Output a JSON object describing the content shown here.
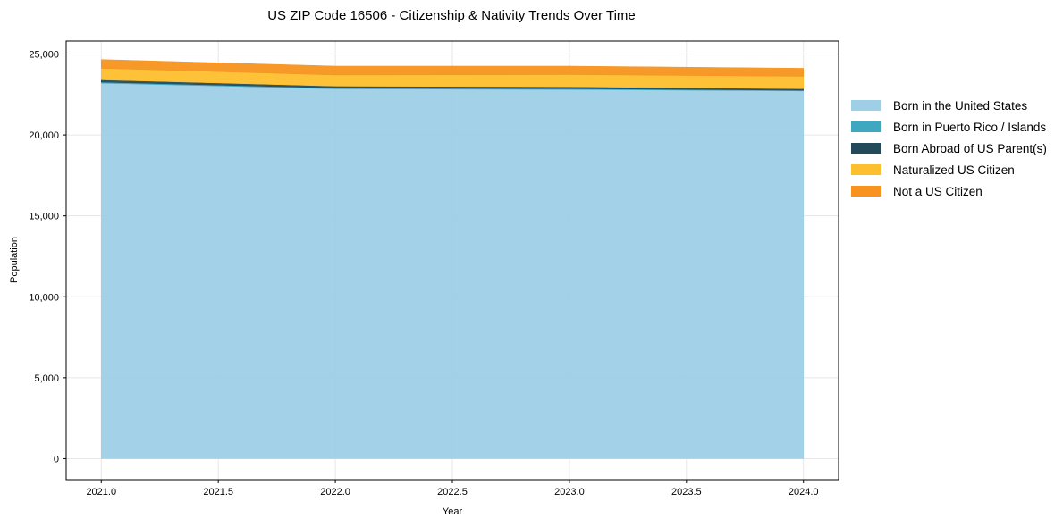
{
  "chart_data": {
    "type": "area",
    "stacked": true,
    "title": "US ZIP Code 16506 - Citizenship & Nativity Trends Over Time",
    "xlabel": "Year",
    "ylabel": "Population",
    "x": [
      2021,
      2022,
      2023,
      2024
    ],
    "xlim": [
      2020.85,
      2024.15
    ],
    "ylim": [
      -1300,
      25800
    ],
    "x_ticks": [
      "2021.0",
      "2021.5",
      "2022.0",
      "2022.5",
      "2023.0",
      "2023.5",
      "2024.0"
    ],
    "y_ticks": [
      "0",
      "5,000",
      "10,000",
      "15,000",
      "20,000",
      "25,000"
    ],
    "grid": true,
    "legend_position": "right",
    "series": [
      {
        "name": "Born in the United States",
        "color": "#9ecfe6",
        "values": [
          23200,
          22850,
          22810,
          22720
        ]
      },
      {
        "name": "Born in Puerto Rico / Islands",
        "color": "#3fa7c0",
        "values": [
          60,
          50,
          50,
          40
        ]
      },
      {
        "name": "Born Abroad of US Parent(s)",
        "color": "#234a5a",
        "values": [
          140,
          115,
          115,
          90
        ]
      },
      {
        "name": "Naturalized US Citizen",
        "color": "#fdbf2d",
        "values": [
          720,
          690,
          755,
          770
        ]
      },
      {
        "name": "Not a US Citizen",
        "color": "#f7931e",
        "values": [
          540,
          550,
          525,
          500
        ]
      }
    ]
  },
  "legend": {
    "items": [
      {
        "label": "Born in the United States",
        "color": "#9ecfe6"
      },
      {
        "label": "Born in Puerto Rico / Islands",
        "color": "#3fa7c0"
      },
      {
        "label": "Born Abroad of US Parent(s)",
        "color": "#234a5a"
      },
      {
        "label": "Naturalized US Citizen",
        "color": "#fdbf2d"
      },
      {
        "label": "Not a US Citizen",
        "color": "#f7931e"
      }
    ]
  }
}
